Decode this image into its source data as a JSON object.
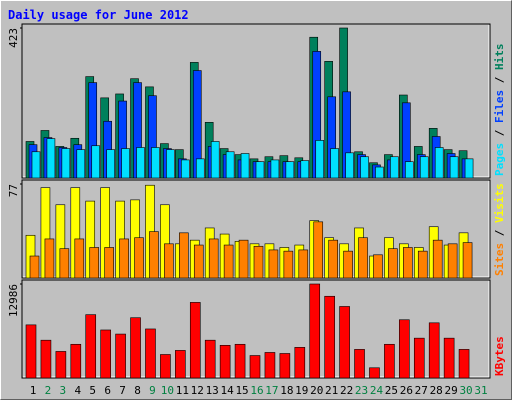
{
  "title": "Daily usage for June 2012",
  "legend_separator": " / ",
  "categories": [
    "1",
    "2",
    "3",
    "4",
    "5",
    "6",
    "7",
    "8",
    "9",
    "10",
    "11",
    "12",
    "13",
    "14",
    "15",
    "16",
    "17",
    "18",
    "19",
    "20",
    "21",
    "22",
    "23",
    "24",
    "25",
    "26",
    "27",
    "28",
    "29",
    "30",
    "31"
  ],
  "category_colors": [
    "#000000",
    "#008040",
    "#008040",
    "#000000",
    "#000000",
    "#000000",
    "#000000",
    "#000000",
    "#008040",
    "#008040",
    "#000000",
    "#000000",
    "#000000",
    "#000000",
    "#000000",
    "#008040",
    "#008040",
    "#000000",
    "#000000",
    "#000000",
    "#000000",
    "#000000",
    "#008040",
    "#008040",
    "#000000",
    "#000000",
    "#000000",
    "#000000",
    "#000000",
    "#008040",
    "#008040"
  ],
  "chart_data": [
    {
      "type": "bar",
      "ylim": [
        0,
        423
      ],
      "yticks": [
        423
      ],
      "series": [
        {
          "name": "Hits",
          "color": "#00805c",
          "values": [
            103,
            134,
            89,
            112,
            286,
            226,
            237,
            280,
            257,
            97,
            80,
            326,
            157,
            83,
            66,
            54,
            60,
            63,
            57,
            397,
            329,
            423,
            74,
            43,
            66,
            234,
            89,
            140,
            80,
            77,
            null
          ]
        },
        {
          "name": "Files",
          "color": "#0040ff",
          "values": [
            94,
            114,
            86,
            94,
            269,
            160,
            217,
            269,
            232,
            83,
            54,
            303,
            89,
            66,
            51,
            46,
            46,
            46,
            46,
            357,
            229,
            243,
            66,
            37,
            51,
            212,
            66,
            117,
            69,
            54,
            null
          ]
        },
        {
          "name": "Pages",
          "color": "#00e0ff",
          "values": [
            74,
            111,
            83,
            80,
            91,
            80,
            83,
            86,
            86,
            80,
            51,
            54,
            103,
            74,
            69,
            46,
            51,
            46,
            49,
            106,
            83,
            71,
            60,
            31,
            60,
            46,
            60,
            86,
            60,
            54,
            null
          ]
        }
      ]
    },
    {
      "type": "bar",
      "ylim": [
        0,
        77
      ],
      "yticks": [
        77
      ],
      "series": [
        {
          "name": "Visits",
          "color": "#ffff00",
          "values": [
            35,
            74,
            60,
            74,
            63,
            74,
            63,
            64,
            76,
            60,
            28,
            31,
            41,
            36,
            30,
            28,
            28,
            25,
            27,
            47,
            33,
            28,
            41,
            18,
            33,
            28,
            25,
            42,
            27,
            37,
            null
          ]
        },
        {
          "name": "Sites",
          "color": "#ff8000",
          "values": [
            18,
            32,
            24,
            32,
            25,
            25,
            32,
            33,
            38,
            28,
            37,
            27,
            32,
            27,
            31,
            26,
            23,
            22,
            23,
            46,
            31,
            22,
            33,
            19,
            24,
            25,
            22,
            31,
            28,
            29,
            null
          ]
        }
      ]
    },
    {
      "type": "bar",
      "ylim": [
        0,
        12986
      ],
      "yticks": [
        12986
      ],
      "series": [
        {
          "name": "KBytes",
          "color": "#ff0000",
          "values": [
            7340,
            5223,
            3670,
            4658,
            8751,
            6634,
            6069,
            8328,
            6775,
            3247,
            3811,
            10445,
            5223,
            4517,
            4658,
            3105,
            3529,
            3388,
            4235,
            12986,
            11293,
            9881,
            3952,
            1412,
            4658,
            8046,
            5505,
            7623,
            5505,
            3952,
            null
          ]
        }
      ]
    }
  ]
}
